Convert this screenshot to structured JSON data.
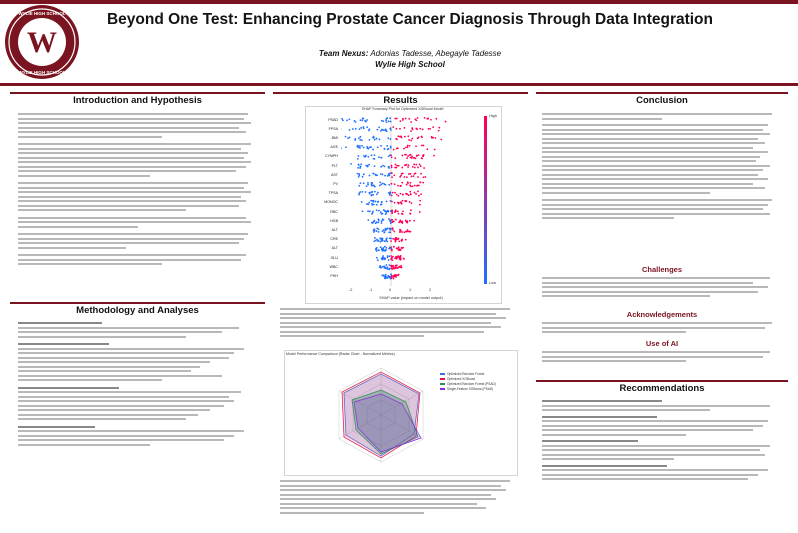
{
  "poster": {
    "title": "Beyond One Test: Enhancing Prostate Cancer Diagnosis Through Data Integration",
    "team_label": "Team Nexus:",
    "authors": "Adonias Tadesse, Abegayle Tadesse",
    "school": "Wylie High School",
    "logo": {
      "letter": "W",
      "top_text": "WYLIE HIGH SCHOOL",
      "bottom_text": "WYLIE HIGH SCHOOL",
      "icon": "school-logo-seal"
    }
  },
  "colors": {
    "accent": "#7a1420",
    "shap_low": "#1f6fff",
    "shap_high": "#ff0055"
  },
  "sections": {
    "intro": "Introduction and Hypothesis",
    "methods": "Methodology and Analyses",
    "results": "Results",
    "conclusion": "Conclusion",
    "challenges": "Challenges",
    "acknowledgements": "Acknowledgements",
    "use_of_ai": "Use of AI",
    "recommendations": "Recommendations"
  },
  "figures": {
    "shap_title": "SHAP Summary Plot for Optimized XGBoost Model",
    "shap_xlabel": "SHAP value (impact on model output)",
    "shap_features": [
      "PSAD",
      "FPSA",
      "BMI",
      "AGE",
      "CYMPH",
      "PLT",
      "AST",
      "PV",
      "TPSA",
      "MONOC",
      "RBC",
      "HGB",
      "ALT",
      "CRE",
      "ALT",
      "GLU",
      "WBC",
      "PHH"
    ],
    "shap_ticks": [
      "-2",
      "-1",
      "0",
      "1",
      "2"
    ],
    "shap_high": "High",
    "shap_low": "Low",
    "radar_title": "Model Performance Comparison (Radar Chart - Normalized Metrics)",
    "radar_legend": [
      "Optimized Random Forest",
      "Optimized XGBoost",
      "Optimized Random Forest (PSAD)",
      "Single-Feature XGBoost (PSAD)"
    ]
  }
}
